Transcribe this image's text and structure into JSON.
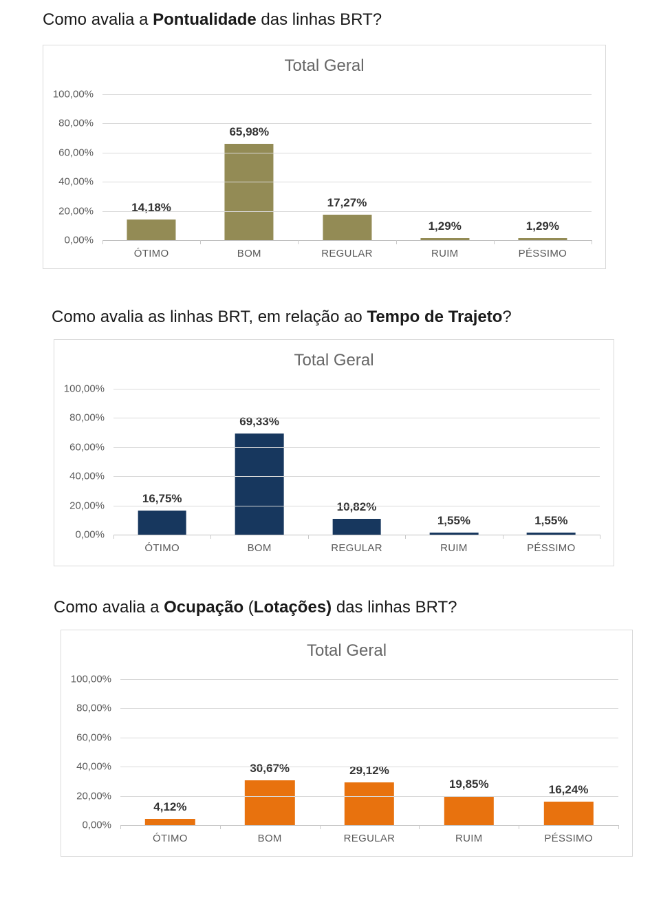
{
  "colors": {
    "page_background": "#ffffff",
    "chart_border": "#d9d9d9",
    "gridline": "#d9d9d9",
    "axis_line": "#bfbfbf",
    "axis_text": "#595959",
    "chart_title_text": "#666666",
    "value_label_text": "#333333",
    "bar_olive": "#938B55",
    "bar_navy": "#17375E",
    "bar_orange": "#E8720E"
  },
  "chart_data": [
    {
      "type": "bar",
      "question_segments": [
        {
          "text": "Como avalia a ",
          "bold": false
        },
        {
          "text": "Pontualidade",
          "bold": true
        },
        {
          "text": " das linhas BRT?",
          "bold": false
        }
      ],
      "title": "Total Geral",
      "categories": [
        "ÓTIMO",
        "BOM",
        "REGULAR",
        "RUIM",
        "PÉSSIMO"
      ],
      "values": [
        14.18,
        65.98,
        17.27,
        1.29,
        1.29
      ],
      "value_labels": [
        "14,18%",
        "65,98%",
        "17,27%",
        "1,29%",
        "1,29%"
      ],
      "y_tick_labels": [
        "100,00%",
        "80,00%",
        "60,00%",
        "40,00%",
        "20,00%",
        "0,00%"
      ],
      "ylim": [
        0,
        100
      ],
      "grid": true,
      "legend": "none",
      "bar_color": "#938B55"
    },
    {
      "type": "bar",
      "question_segments": [
        {
          "text": "Como avalia as linhas BRT, em relação ao ",
          "bold": false
        },
        {
          "text": "Tempo de Trajeto",
          "bold": true
        },
        {
          "text": "?",
          "bold": false
        }
      ],
      "title": "Total Geral",
      "categories": [
        "ÓTIMO",
        "BOM",
        "REGULAR",
        "RUIM",
        "PÉSSIMO"
      ],
      "values": [
        16.75,
        69.33,
        10.82,
        1.55,
        1.55
      ],
      "value_labels": [
        "16,75%",
        "69,33%",
        "10,82%",
        "1,55%",
        "1,55%"
      ],
      "y_tick_labels": [
        "100,00%",
        "80,00%",
        "60,00%",
        "40,00%",
        "20,00%",
        "0,00%"
      ],
      "ylim": [
        0,
        100
      ],
      "grid": true,
      "legend": "none",
      "bar_color": "#17375E"
    },
    {
      "type": "bar",
      "question_segments": [
        {
          "text": "Como avalia a ",
          "bold": false
        },
        {
          "text": "Ocupação",
          "bold": true
        },
        {
          "text": " (",
          "bold": false
        },
        {
          "text": "Lotações)",
          "bold": true
        },
        {
          "text": " das linhas BRT?",
          "bold": false
        }
      ],
      "title": "Total Geral",
      "categories": [
        "ÓTIMO",
        "BOM",
        "REGULAR",
        "RUIM",
        "PÉSSIMO"
      ],
      "values": [
        4.12,
        30.67,
        29.12,
        19.85,
        16.24
      ],
      "value_labels": [
        "4,12%",
        "30,67%",
        "29,12%",
        "19,85%",
        "16,24%"
      ],
      "y_tick_labels": [
        "100,00%",
        "80,00%",
        "60,00%",
        "40,00%",
        "20,00%",
        "0,00%"
      ],
      "ylim": [
        0,
        100
      ],
      "grid": true,
      "legend": "none",
      "bar_color": "#E8720E"
    }
  ]
}
